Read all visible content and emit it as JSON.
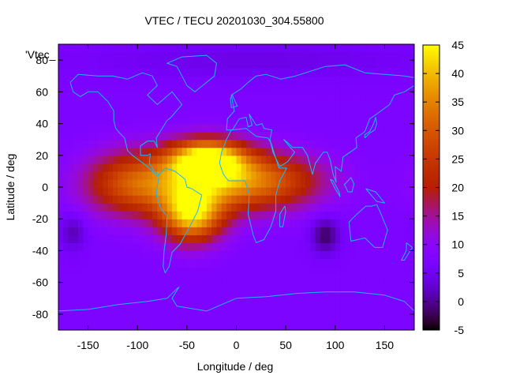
{
  "chart_data": {
    "type": "heatmap",
    "title": "VTEC / TECU 20201030_304.55800",
    "xlabel": "Longitude / deg",
    "ylabel": "Latitude / deg",
    "series_label": "'Vtec_",
    "xlim": [
      -180,
      180
    ],
    "ylim": [
      -90,
      90
    ],
    "x_ticks": [
      -150,
      -100,
      -50,
      0,
      50,
      100,
      150
    ],
    "y_ticks": [
      -80,
      -60,
      -40,
      -20,
      0,
      20,
      40,
      60,
      80
    ],
    "colorbar": {
      "range": [
        -5,
        45
      ],
      "ticks": [
        -5,
        0,
        5,
        10,
        15,
        20,
        25,
        30,
        35,
        40,
        45
      ]
    },
    "field": {
      "grid_step_deg": 5,
      "background_tecu": 7,
      "anomalies": [
        {
          "name": "equatorial-anomaly-south-america",
          "lon": -30,
          "lat": 18,
          "peak": 36,
          "sigma_lon": 28,
          "sigma_lat": 9
        },
        {
          "name": "equatorial-anomaly-brazil",
          "lon": -45,
          "lat": -18,
          "peak": 31,
          "sigma_lon": 22,
          "sigma_lat": 12
        },
        {
          "name": "equatorial-band-atlantic",
          "lon": -40,
          "lat": 2,
          "peak": 24,
          "sigma_lon": 60,
          "sigma_lat": 13
        },
        {
          "name": "equatorial-band-africa",
          "lon": 35,
          "lat": 5,
          "peak": 14,
          "sigma_lon": 40,
          "sigma_lat": 12
        },
        {
          "name": "high-pacific",
          "lon": -110,
          "lat": 3,
          "peak": 12,
          "sigma_lon": 30,
          "sigma_lat": 15
        },
        {
          "name": "low-indian-ocean",
          "lon": 90,
          "lat": -30,
          "peak": -9,
          "sigma_lon": 10,
          "sigma_lat": 8
        },
        {
          "name": "low-south-pacific",
          "lon": -165,
          "lat": -28,
          "peak": -6,
          "sigma_lon": 9,
          "sigma_lat": 8
        },
        {
          "name": "low-arctic",
          "lon": 20,
          "lat": 80,
          "peak": -3,
          "sigma_lon": 120,
          "sigma_lat": 8
        }
      ]
    },
    "coastlines": [
      {
        "name": "north-america",
        "points": [
          [
            -168,
            66
          ],
          [
            -160,
            71
          ],
          [
            -140,
            70
          ],
          [
            -125,
            70
          ],
          [
            -110,
            68
          ],
          [
            -95,
            72
          ],
          [
            -85,
            70
          ],
          [
            -80,
            64
          ],
          [
            -90,
            58
          ],
          [
            -80,
            52
          ],
          [
            -65,
            60
          ],
          [
            -55,
            52
          ],
          [
            -66,
            44
          ],
          [
            -70,
            42
          ],
          [
            -76,
            36
          ],
          [
            -81,
            31
          ],
          [
            -80,
            25
          ],
          [
            -83,
            29
          ],
          [
            -90,
            29
          ],
          [
            -97,
            26
          ],
          [
            -97,
            20
          ],
          [
            -90,
            20
          ],
          [
            -87,
            21
          ],
          [
            -88,
            15
          ],
          [
            -83,
            10
          ],
          [
            -78,
            8
          ],
          [
            -80,
            7
          ],
          [
            -85,
            10
          ],
          [
            -92,
            14
          ],
          [
            -105,
            20
          ],
          [
            -110,
            23
          ],
          [
            -113,
            31
          ],
          [
            -118,
            34
          ],
          [
            -122,
            37
          ],
          [
            -124,
            42
          ],
          [
            -124,
            48
          ],
          [
            -130,
            54
          ],
          [
            -140,
            60
          ],
          [
            -150,
            60
          ],
          [
            -158,
            57
          ],
          [
            -165,
            60
          ],
          [
            -168,
            66
          ]
        ]
      },
      {
        "name": "greenland",
        "points": [
          [
            -55,
            82
          ],
          [
            -30,
            83
          ],
          [
            -20,
            78
          ],
          [
            -22,
            70
          ],
          [
            -42,
            60
          ],
          [
            -50,
            64
          ],
          [
            -55,
            70
          ],
          [
            -60,
            76
          ],
          [
            -70,
            78
          ],
          [
            -55,
            82
          ]
        ]
      },
      {
        "name": "south-america",
        "points": [
          [
            -78,
            8
          ],
          [
            -72,
            12
          ],
          [
            -62,
            10
          ],
          [
            -52,
            5
          ],
          [
            -50,
            0
          ],
          [
            -45,
            -1
          ],
          [
            -35,
            -5
          ],
          [
            -39,
            -15
          ],
          [
            -48,
            -26
          ],
          [
            -57,
            -36
          ],
          [
            -65,
            -41
          ],
          [
            -68,
            -50
          ],
          [
            -72,
            -54
          ],
          [
            -74,
            -50
          ],
          [
            -73,
            -40
          ],
          [
            -71,
            -30
          ],
          [
            -70,
            -18
          ],
          [
            -76,
            -14
          ],
          [
            -81,
            -5
          ],
          [
            -80,
            0
          ],
          [
            -78,
            8
          ]
        ]
      },
      {
        "name": "africa",
        "points": [
          [
            -17,
            15
          ],
          [
            -15,
            22
          ],
          [
            -10,
            30
          ],
          [
            -5,
            36
          ],
          [
            10,
            37
          ],
          [
            20,
            32
          ],
          [
            32,
            31
          ],
          [
            35,
            28
          ],
          [
            43,
            12
          ],
          [
            51,
            12
          ],
          [
            44,
            4
          ],
          [
            40,
            -5
          ],
          [
            40,
            -15
          ],
          [
            35,
            -25
          ],
          [
            28,
            -33
          ],
          [
            20,
            -35
          ],
          [
            17,
            -30
          ],
          [
            12,
            -17
          ],
          [
            13,
            -5
          ],
          [
            9,
            4
          ],
          [
            -8,
            4
          ],
          [
            -13,
            8
          ],
          [
            -17,
            15
          ]
        ]
      },
      {
        "name": "eurasia",
        "points": [
          [
            -10,
            36
          ],
          [
            -9,
            43
          ],
          [
            -2,
            48
          ],
          [
            -5,
            58
          ],
          [
            5,
            62
          ],
          [
            12,
            66
          ],
          [
            20,
            70
          ],
          [
            30,
            71
          ],
          [
            45,
            68
          ],
          [
            60,
            70
          ],
          [
            75,
            73
          ],
          [
            90,
            76
          ],
          [
            110,
            77
          ],
          [
            130,
            72
          ],
          [
            150,
            71
          ],
          [
            170,
            70
          ],
          [
            180,
            69
          ],
          [
            180,
            64
          ],
          [
            170,
            60
          ],
          [
            160,
            58
          ],
          [
            155,
            52
          ],
          [
            142,
            46
          ],
          [
            135,
            43
          ],
          [
            130,
            35
          ],
          [
            121,
            31
          ],
          [
            122,
            25
          ],
          [
            115,
            22
          ],
          [
            108,
            19
          ],
          [
            106,
            10
          ],
          [
            100,
            13
          ],
          [
            101,
            3
          ],
          [
            98,
            8
          ],
          [
            95,
            17
          ],
          [
            92,
            22
          ],
          [
            88,
            22
          ],
          [
            80,
            15
          ],
          [
            77,
            8
          ],
          [
            72,
            20
          ],
          [
            67,
            25
          ],
          [
            57,
            25
          ],
          [
            52,
            28
          ],
          [
            48,
            30
          ],
          [
            56,
            24
          ],
          [
            59,
            22
          ],
          [
            52,
            16
          ],
          [
            44,
            13
          ],
          [
            37,
            22
          ],
          [
            34,
            30
          ],
          [
            36,
            36
          ],
          [
            28,
            37
          ],
          [
            26,
            40
          ],
          [
            20,
            39
          ],
          [
            18,
            41
          ],
          [
            13,
            46
          ],
          [
            16,
            39
          ],
          [
            12,
            38
          ],
          [
            10,
            44
          ],
          [
            3,
            43
          ],
          [
            -4,
            36
          ],
          [
            -10,
            36
          ]
        ]
      },
      {
        "name": "australia",
        "points": [
          [
            114,
            -22
          ],
          [
            116,
            -34
          ],
          [
            130,
            -32
          ],
          [
            140,
            -38
          ],
          [
            148,
            -38
          ],
          [
            153,
            -27
          ],
          [
            145,
            -15
          ],
          [
            142,
            -11
          ],
          [
            137,
            -12
          ],
          [
            131,
            -12
          ],
          [
            122,
            -17
          ],
          [
            114,
            -22
          ]
        ]
      },
      {
        "name": "uk",
        "points": [
          [
            -5,
            50
          ],
          [
            1,
            51
          ],
          [
            -2,
            55
          ],
          [
            -4,
            58
          ],
          [
            -6,
            56
          ],
          [
            -5,
            50
          ]
        ]
      },
      {
        "name": "japan",
        "points": [
          [
            130,
            31
          ],
          [
            135,
            34
          ],
          [
            140,
            36
          ],
          [
            142,
            40
          ],
          [
            141,
            44
          ],
          [
            139,
            40
          ],
          [
            135,
            35
          ],
          [
            130,
            33
          ],
          [
            130,
            31
          ]
        ]
      },
      {
        "name": "madagascar",
        "points": [
          [
            44,
            -25
          ],
          [
            47,
            -25
          ],
          [
            50,
            -15
          ],
          [
            49,
            -12
          ],
          [
            44,
            -17
          ],
          [
            44,
            -25
          ]
        ]
      },
      {
        "name": "borneo",
        "points": [
          [
            109,
            2
          ],
          [
            113,
            -3
          ],
          [
            117,
            -3
          ],
          [
            119,
            2
          ],
          [
            116,
            6
          ],
          [
            110,
            2
          ],
          [
            109,
            2
          ]
        ]
      },
      {
        "name": "sumatra",
        "points": [
          [
            95,
            5
          ],
          [
            100,
            -1
          ],
          [
            105,
            -6
          ],
          [
            104,
            -3
          ],
          [
            98,
            4
          ],
          [
            95,
            5
          ]
        ]
      },
      {
        "name": "new-guinea",
        "points": [
          [
            131,
            -1
          ],
          [
            141,
            -3
          ],
          [
            150,
            -10
          ],
          [
            142,
            -9
          ],
          [
            135,
            -4
          ],
          [
            131,
            -1
          ]
        ]
      },
      {
        "name": "new-zealand",
        "points": [
          [
            172,
            -35
          ],
          [
            178,
            -38
          ],
          [
            174,
            -42
          ],
          [
            170,
            -46
          ],
          [
            167,
            -46
          ],
          [
            172,
            -40
          ],
          [
            172,
            -35
          ]
        ]
      },
      {
        "name": "antarctica",
        "points": [
          [
            -180,
            -78
          ],
          [
            -150,
            -77
          ],
          [
            -120,
            -74
          ],
          [
            -90,
            -72
          ],
          [
            -70,
            -70
          ],
          [
            -60,
            -64
          ],
          [
            -58,
            -63
          ],
          [
            -65,
            -70
          ],
          [
            -60,
            -75
          ],
          [
            -30,
            -78
          ],
          [
            0,
            -70
          ],
          [
            30,
            -69
          ],
          [
            60,
            -67
          ],
          [
            90,
            -66
          ],
          [
            120,
            -66
          ],
          [
            150,
            -68
          ],
          [
            170,
            -72
          ],
          [
            180,
            -78
          ]
        ]
      }
    ]
  }
}
